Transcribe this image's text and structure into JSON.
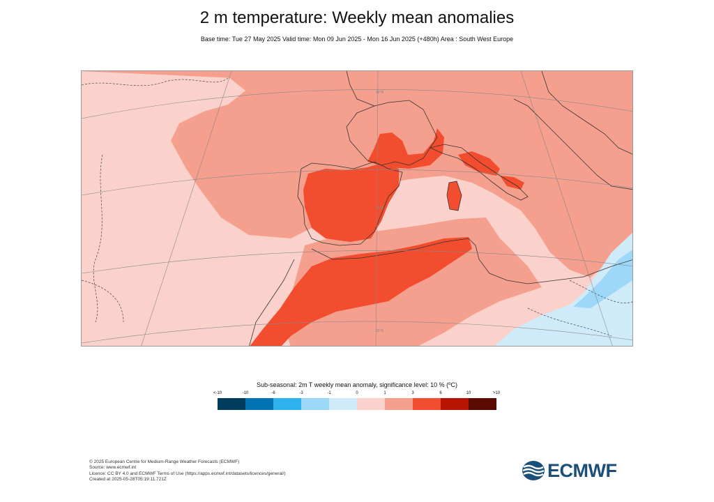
{
  "header": {
    "title": "2 m temperature: Weekly mean anomalies",
    "subtitle": "Base time: Tue 27 May 2025 Valid time: Mon 09 Jun 2025 - Mon 16 Jun 2025 (+480h) Area : South West Europe"
  },
  "map": {
    "base_color": "#fbd2cb",
    "grid_labels": [
      "45°N",
      "40°N",
      "35°N"
    ]
  },
  "legend": {
    "title": "Sub-seasonal: 2m T weekly mean anomaly, significance level: 10 % (ºC)",
    "ticks": [
      "<-10",
      "-10",
      "-6",
      "-3",
      "-1",
      "0",
      "1",
      "3",
      "6",
      "10",
      ">10"
    ],
    "colors": [
      "#003a5c",
      "#0072b2",
      "#2eb2ee",
      "#9dd8f8",
      "#cfeaf9",
      "#fbd2cb",
      "#f5a08f",
      "#f24d2e",
      "#b71400",
      "#5a0a00"
    ]
  },
  "footer": {
    "lines": [
      "© 2025 European Centre for Medium-Range Weather Forecasts (ECMWF)",
      "Source: www.ecmwf.int",
      "Licence: CC BY 4.0 and ECMWF Terms of Use (https://apps.ecmwf.int/datasets/licences/general/)",
      "Created at 2025-05-28T05:19:11.721Z"
    ]
  },
  "logo": {
    "text": "ECMWF",
    "color": "#1c4f78"
  }
}
